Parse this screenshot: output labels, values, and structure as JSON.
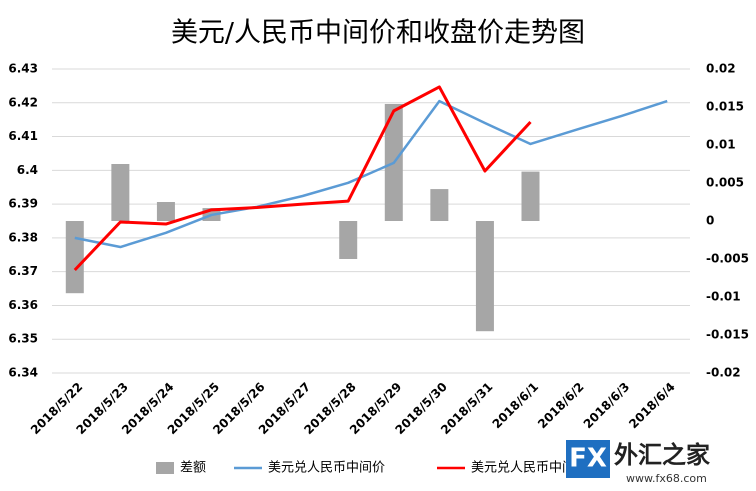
{
  "chart_data": {
    "type": "combo",
    "title": "美元/人民币中间价和收盘价走势图",
    "categories": [
      "2018/5/22",
      "2018/5/23",
      "2018/5/24",
      "2018/5/25",
      "2018/5/26",
      "2018/5/27",
      "2018/5/28",
      "2018/5/29",
      "2018/5/30",
      "2018/5/31",
      "2018/6/1",
      "2018/6/2",
      "2018/6/3",
      "2018/6/4"
    ],
    "series": [
      {
        "name": "差额",
        "type": "bar",
        "axis": "y2",
        "color": "#a6a6a6",
        "values": [
          -0.0095,
          0.0075,
          0.0025,
          0.0017,
          null,
          null,
          -0.005,
          0.0154,
          0.0042,
          -0.0145,
          0.0065,
          null,
          null,
          null
        ]
      },
      {
        "name": "美元兑人民币中间价",
        "type": "line",
        "color": "#5b9bd5",
        "values": [
          6.38,
          6.3773,
          6.3815,
          6.3868,
          6.3892,
          6.3924,
          6.3963,
          6.4022,
          6.4205,
          6.414,
          6.4078,
          6.412,
          6.4161,
          6.4205
        ]
      },
      {
        "name": "美元兑人民币中间价",
        "type": "line",
        "color": "#ff0000",
        "values": [
          6.3705,
          6.3847,
          6.3841,
          6.3883,
          6.389,
          6.39,
          6.3909,
          6.4176,
          6.4247,
          6.3998,
          6.4143,
          null,
          null,
          null
        ]
      }
    ],
    "ylim": [
      6.34,
      6.43
    ],
    "yticks": [
      6.34,
      6.35,
      6.36,
      6.37,
      6.38,
      6.39,
      6.4,
      6.41,
      6.42,
      6.43
    ],
    "y2lim": [
      -0.02,
      0.02
    ],
    "y2ticks": [
      -0.02,
      -0.015,
      -0.01,
      -0.005,
      0,
      0.005,
      0.01,
      0.015,
      0.02
    ],
    "grid": true,
    "legend": "bottom",
    "logo": {
      "mark": "FX",
      "name": "外汇之家",
      "url": "www.fx68.com"
    }
  }
}
